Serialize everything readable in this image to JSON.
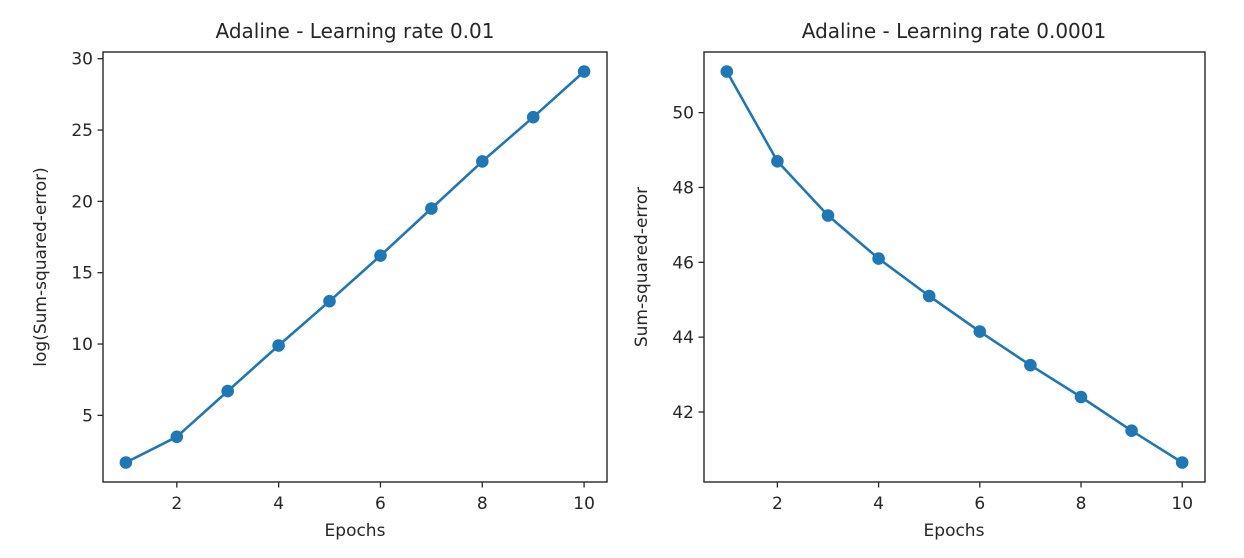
{
  "figure": {
    "background": "#ffffff",
    "text_color": "#262626",
    "spine_color": "#262626",
    "accent_color": "#1f77b4"
  },
  "chart_data": [
    {
      "type": "line",
      "title": "Adaline - Learning rate 0.01",
      "xlabel": "Epochs",
      "ylabel": "log(Sum-squared-error)",
      "x": [
        1,
        2,
        3,
        4,
        5,
        6,
        7,
        8,
        9,
        10
      ],
      "y": [
        1.7,
        3.5,
        6.7,
        9.9,
        13.0,
        16.2,
        19.5,
        22.8,
        25.9,
        29.1
      ],
      "xticks": [
        2,
        4,
        6,
        8,
        10
      ],
      "yticks": [
        5,
        10,
        15,
        20,
        25,
        30
      ],
      "xlim": [
        0.55,
        10.45
      ],
      "ylim": [
        0.33,
        30.47
      ],
      "grid": false,
      "legend": "none",
      "marker": "circle",
      "line_color": "#1f77b4",
      "marker_color": "#1f77b4"
    },
    {
      "type": "line",
      "title": "Adaline - Learning rate 0.0001",
      "xlabel": "Epochs",
      "ylabel": "Sum-squared-error",
      "x": [
        1,
        2,
        3,
        4,
        5,
        6,
        7,
        8,
        9,
        10
      ],
      "y": [
        51.1,
        48.7,
        47.25,
        46.1,
        45.1,
        44.15,
        43.25,
        42.4,
        41.5,
        40.65
      ],
      "xticks": [
        2,
        4,
        6,
        8,
        10
      ],
      "yticks": [
        42,
        44,
        46,
        48,
        50
      ],
      "xlim": [
        0.55,
        10.45
      ],
      "ylim": [
        40.13,
        51.62
      ],
      "grid": false,
      "legend": "none",
      "marker": "circle",
      "line_color": "#1f77b4",
      "marker_color": "#1f77b4"
    }
  ]
}
